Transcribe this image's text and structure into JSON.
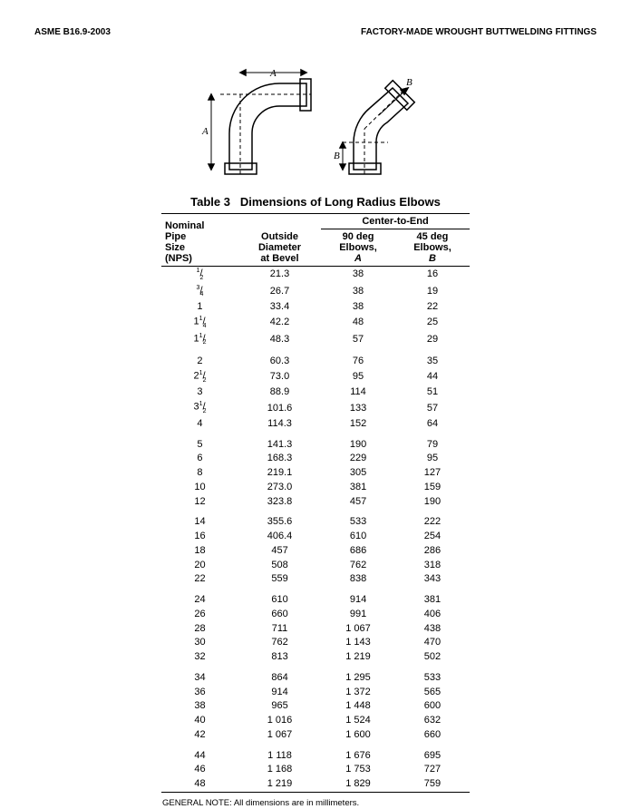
{
  "header_left": "ASME B16.9-2003",
  "header_right": "FACTORY-MADE WROUGHT BUTTWELDING FITTINGS",
  "caption_prefix": "Table 3",
  "caption_title": "Dimensions of Long Radius Elbows",
  "col1_l1": "Nominal",
  "col1_l2": "Pipe",
  "col1_l3": "Size",
  "col1_l4": "(NPS)",
  "col2_l1": "Outside",
  "col2_l2": "Diameter",
  "col2_l3": "at Bevel",
  "col_cte": "Center-to-End",
  "col3_l1": "90 deg",
  "col3_l2": "Elbows,",
  "col3_l3": "A",
  "col4_l1": "45 deg",
  "col4_l2": "Elbows,",
  "col4_l3": "B",
  "label_A": "A",
  "label_B": "B",
  "footnote": "GENERAL NOTE: All dimensions are in millimeters.",
  "diagram": {
    "stroke": "#000000",
    "dash": "4,3"
  },
  "rows": [
    {
      "nps_html": "<span class='frac-sup'>1</span>/<span class='frac-sub'>2</span>",
      "od": "21.3",
      "a": "38",
      "b": "16",
      "gap": false
    },
    {
      "nps_html": "<span class='frac-sup'>3</span>/<span class='frac-sub'>4</span>",
      "od": "26.7",
      "a": "38",
      "b": "19",
      "gap": false
    },
    {
      "nps_html": "1",
      "od": "33.4",
      "a": "38",
      "b": "22",
      "gap": false
    },
    {
      "nps_html": "1<span class='frac-sup'>1</span>/<span class='frac-sub'>4</span>",
      "od": "42.2",
      "a": "48",
      "b": "25",
      "gap": false
    },
    {
      "nps_html": "1<span class='frac-sup'>1</span>/<span class='frac-sub'>2</span>",
      "od": "48.3",
      "a": "57",
      "b": "29",
      "gap": false
    },
    {
      "nps_html": "2",
      "od": "60.3",
      "a": "76",
      "b": "35",
      "gap": true
    },
    {
      "nps_html": "2<span class='frac-sup'>1</span>/<span class='frac-sub'>2</span>",
      "od": "73.0",
      "a": "95",
      "b": "44",
      "gap": false
    },
    {
      "nps_html": "3",
      "od": "88.9",
      "a": "114",
      "b": "51",
      "gap": false
    },
    {
      "nps_html": "3<span class='frac-sup'>1</span>/<span class='frac-sub'>2</span>",
      "od": "101.6",
      "a": "133",
      "b": "57",
      "gap": false
    },
    {
      "nps_html": "4",
      "od": "114.3",
      "a": "152",
      "b": "64",
      "gap": false
    },
    {
      "nps_html": "5",
      "od": "141.3",
      "a": "190",
      "b": "79",
      "gap": true
    },
    {
      "nps_html": "6",
      "od": "168.3",
      "a": "229",
      "b": "95",
      "gap": false
    },
    {
      "nps_html": "8",
      "od": "219.1",
      "a": "305",
      "b": "127",
      "gap": false
    },
    {
      "nps_html": "10",
      "od": "273.0",
      "a": "381",
      "b": "159",
      "gap": false
    },
    {
      "nps_html": "12",
      "od": "323.8",
      "a": "457",
      "b": "190",
      "gap": false
    },
    {
      "nps_html": "14",
      "od": "355.6",
      "a": "533",
      "b": "222",
      "gap": true
    },
    {
      "nps_html": "16",
      "od": "406.4",
      "a": "610",
      "b": "254",
      "gap": false
    },
    {
      "nps_html": "18",
      "od": "457",
      "a": "686",
      "b": "286",
      "gap": false
    },
    {
      "nps_html": "20",
      "od": "508",
      "a": "762",
      "b": "318",
      "gap": false
    },
    {
      "nps_html": "22",
      "od": "559",
      "a": "838",
      "b": "343",
      "gap": false
    },
    {
      "nps_html": "24",
      "od": "610",
      "a": "914",
      "b": "381",
      "gap": true
    },
    {
      "nps_html": "26",
      "od": "660",
      "a": "991",
      "b": "406",
      "gap": false
    },
    {
      "nps_html": "28",
      "od": "711",
      "a": "1 067",
      "b": "438",
      "gap": false
    },
    {
      "nps_html": "30",
      "od": "762",
      "a": "1 143",
      "b": "470",
      "gap": false
    },
    {
      "nps_html": "32",
      "od": "813",
      "a": "1 219",
      "b": "502",
      "gap": false
    },
    {
      "nps_html": "34",
      "od": "864",
      "a": "1 295",
      "b": "533",
      "gap": true
    },
    {
      "nps_html": "36",
      "od": "914",
      "a": "1 372",
      "b": "565",
      "gap": false
    },
    {
      "nps_html": "38",
      "od": "965",
      "a": "1 448",
      "b": "600",
      "gap": false
    },
    {
      "nps_html": "40",
      "od": "1 016",
      "a": "1 524",
      "b": "632",
      "gap": false
    },
    {
      "nps_html": "42",
      "od": "1 067",
      "a": "1 600",
      "b": "660",
      "gap": false
    },
    {
      "nps_html": "44",
      "od": "1 118",
      "a": "1 676",
      "b": "695",
      "gap": true
    },
    {
      "nps_html": "46",
      "od": "1 168",
      "a": "1 753",
      "b": "727",
      "gap": false
    },
    {
      "nps_html": "48",
      "od": "1 219",
      "a": "1 829",
      "b": "759",
      "gap": false
    }
  ]
}
